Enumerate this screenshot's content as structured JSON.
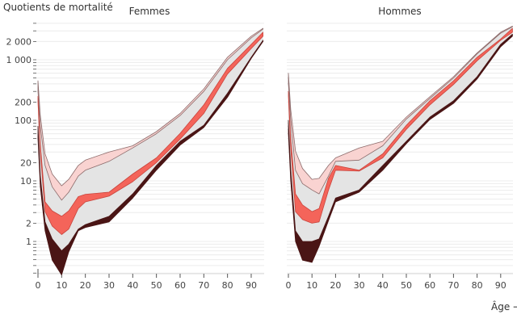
{
  "chart_data": {
    "type": "area",
    "ylabel": "Quotients de mortalité",
    "xlabel": "Âge →",
    "y_scale": "log",
    "ylim": [
      0.3,
      4000
    ],
    "xlim": [
      0,
      95
    ],
    "grid": "horizontal minor log lines",
    "x_ticks": [
      "0",
      "10",
      "20",
      "30",
      "40",
      "50",
      "60",
      "70",
      "80",
      "90"
    ],
    "y_ticks": [
      {
        "value": 1,
        "label": "1"
      },
      {
        "value": 2,
        "label": "2"
      },
      {
        "value": 10,
        "label": "10"
      },
      {
        "value": 20,
        "label": "20"
      },
      {
        "value": 100,
        "label": "100"
      },
      {
        "value": 200,
        "label": "200"
      },
      {
        "value": 1000,
        "label": "1 000"
      },
      {
        "value": 2000,
        "label": "2 000"
      }
    ],
    "colors": {
      "pink": "#f9d3d1",
      "pink_edge": "#8c6b6b",
      "red": "#f4645a",
      "dark": "#4a1515",
      "grey": "#e4e4e4"
    },
    "ages": [
      0,
      1,
      3,
      6,
      10,
      13,
      17,
      20,
      30,
      40,
      50,
      60,
      70,
      80,
      90,
      95
    ],
    "panels": [
      {
        "title": "Femmes",
        "bands": {
          "pink": {
            "upper": [
              450,
              120,
              28,
              13,
              8.3,
              10.6,
              18,
              22,
              30,
              38,
              65,
              130,
              330,
              1100,
              2450,
              3300
            ],
            "lower": [
              300,
              80,
              18,
              8,
              4.8,
              6.5,
              12,
              15,
              21,
              35,
              60,
              120,
              300,
              1000,
              2300,
              3200
            ]
          },
          "red": {
            "upper": [
              250,
              40,
              4.5,
              3.2,
              2.6,
              3.2,
              5.5,
              6,
              6.5,
              13,
              24,
              61,
              180,
              720,
              1800,
              2850
            ],
            "lower": [
              200,
              30,
              3.1,
              1.8,
              1.3,
              1.6,
              3.5,
              4.5,
              5.6,
              9.7,
              20,
              49,
              130,
              580,
              1530,
              2450
            ]
          },
          "dark": {
            "upper": [
              80,
              12,
              2.1,
              1.1,
              0.7,
              0.9,
              1.6,
              1.9,
              2.6,
              6.1,
              18,
              45,
              83,
              280,
              1100,
              2100
            ],
            "lower": [
              50,
              8,
              1.5,
              0.49,
              0.28,
              0.67,
              1.5,
              1.7,
              2.1,
              5.2,
              15,
              39,
              76,
              240,
              1050,
              2000
            ]
          }
        }
      },
      {
        "title": "Hommes",
        "bands": {
          "pink": {
            "upper": [
              600,
              150,
              31,
              16,
              10.6,
              11,
              18,
              24,
              35,
              45,
              113,
              245,
              525,
              1300,
              2850,
              3600
            ],
            "lower": [
              400,
              100,
              15,
              9,
              7.1,
              6.1,
              12,
              21,
              22,
              38,
              105,
              230,
              500,
              1250,
              2750,
              3500
            ]
          },
          "red": {
            "upper": [
              300,
              50,
              6.1,
              4,
              3.1,
              3.5,
              11,
              18,
              15,
              28,
              83,
              210,
              450,
              1100,
              2200,
              3300
            ],
            "lower": [
              250,
              35,
              3.1,
              2.3,
              2.0,
              2.1,
              7,
              15,
              14.5,
              24,
              71,
              180,
              390,
              960,
              2100,
              2850
            ]
          },
          "dark": {
            "upper": [
              100,
              15,
              1.5,
              1,
              1,
              1.1,
              2.6,
              5.2,
              7.1,
              18,
              45,
              113,
              210,
              525,
              1800,
              2650
            ],
            "lower": [
              60,
              10,
              1,
              0.49,
              0.45,
              0.83,
              2.2,
              4.5,
              6.5,
              15,
              41,
              103,
              190,
              480,
              1640,
              2450
            ]
          }
        }
      }
    ]
  }
}
